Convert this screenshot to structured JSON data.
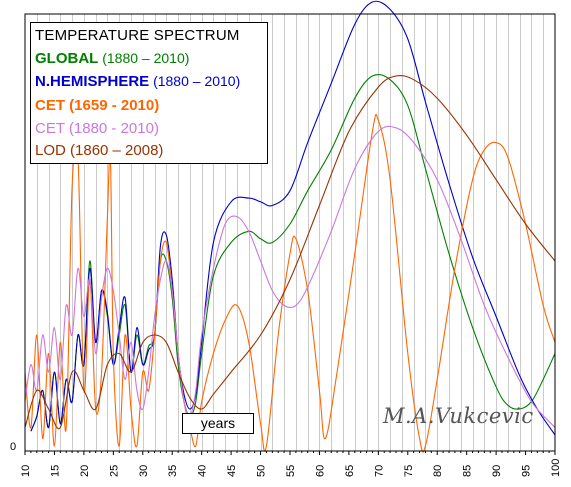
{
  "chart_data": {
    "type": "line",
    "title": "TEMPERATURE  SPECTRUM",
    "xlabel": "years",
    "ylabel": "",
    "xlim": [
      10,
      100
    ],
    "x_ticks": [
      10,
      15,
      20,
      25,
      30,
      35,
      40,
      45,
      50,
      55,
      60,
      65,
      70,
      75,
      80,
      85,
      90,
      95,
      100
    ],
    "y_ticks": [
      "0"
    ],
    "grid": "vertical",
    "legend_position": "top-left",
    "watermark": "M.A.Vukcevic",
    "series": [
      {
        "label_bold": "GLOBAL",
        "label_rest": " (1880 – 2010)",
        "color": "#008000",
        "points": [
          [
            11,
            0.04
          ],
          [
            12,
            0.08
          ],
          [
            13,
            0.15
          ],
          [
            14,
            0.05
          ],
          [
            15,
            0.2
          ],
          [
            16,
            0.06
          ],
          [
            17,
            0.18
          ],
          [
            18,
            0.12
          ],
          [
            19,
            0.3
          ],
          [
            20,
            0.22
          ],
          [
            21,
            0.5
          ],
          [
            22,
            0.28
          ],
          [
            23,
            0.42
          ],
          [
            24,
            0.35
          ],
          [
            25,
            0.22
          ],
          [
            26,
            0.3
          ],
          [
            27,
            0.38
          ],
          [
            28,
            0.2
          ],
          [
            29,
            0.3
          ],
          [
            30,
            0.22
          ],
          [
            31,
            0.27
          ],
          [
            32,
            0.3
          ],
          [
            33,
            0.5
          ],
          [
            34,
            0.5
          ],
          [
            35,
            0.4
          ],
          [
            36,
            0.22
          ],
          [
            37,
            0.12
          ],
          [
            38,
            0.08
          ],
          [
            39,
            0.12
          ],
          [
            40,
            0.25
          ],
          [
            42,
            0.46
          ],
          [
            45,
            0.55
          ],
          [
            48,
            0.58
          ],
          [
            50,
            0.56
          ],
          [
            52,
            0.55
          ],
          [
            55,
            0.6
          ],
          [
            58,
            0.69
          ],
          [
            62,
            0.8
          ],
          [
            66,
            0.94
          ],
          [
            69,
            1.0
          ],
          [
            72,
            0.99
          ],
          [
            75,
            0.92
          ],
          [
            78,
            0.75
          ],
          [
            82,
            0.52
          ],
          [
            86,
            0.32
          ],
          [
            90,
            0.16
          ],
          [
            92,
            0.11
          ],
          [
            94,
            0.1
          ],
          [
            96,
            0.12
          ],
          [
            98,
            0.18
          ],
          [
            100,
            0.25
          ]
        ]
      },
      {
        "label_bold": "N.HEMISPHERE",
        "label_rest": " (1880 – 2010)",
        "color": "#0000CC",
        "points": [
          [
            11,
            0.04
          ],
          [
            12,
            0.08
          ],
          [
            13,
            0.15
          ],
          [
            14,
            0.05
          ],
          [
            15,
            0.2
          ],
          [
            16,
            0.06
          ],
          [
            17,
            0.18
          ],
          [
            18,
            0.12
          ],
          [
            19,
            0.3
          ],
          [
            20,
            0.22
          ],
          [
            21,
            0.48
          ],
          [
            22,
            0.28
          ],
          [
            23,
            0.42
          ],
          [
            24,
            0.36
          ],
          [
            25,
            0.22
          ],
          [
            26,
            0.32
          ],
          [
            27,
            0.4
          ],
          [
            28,
            0.2
          ],
          [
            29,
            0.32
          ],
          [
            30,
            0.22
          ],
          [
            31,
            0.26
          ],
          [
            32,
            0.3
          ],
          [
            33,
            0.54
          ],
          [
            34,
            0.57
          ],
          [
            35,
            0.45
          ],
          [
            36,
            0.25
          ],
          [
            37,
            0.14
          ],
          [
            38,
            0.1
          ],
          [
            39,
            0.14
          ],
          [
            40,
            0.28
          ],
          [
            42,
            0.55
          ],
          [
            45,
            0.66
          ],
          [
            48,
            0.67
          ],
          [
            50,
            0.66
          ],
          [
            52,
            0.65
          ],
          [
            55,
            0.69
          ],
          [
            58,
            0.82
          ],
          [
            62,
            0.98
          ],
          [
            66,
            1.14
          ],
          [
            69,
            1.2
          ],
          [
            72,
            1.18
          ],
          [
            75,
            1.1
          ],
          [
            78,
            0.93
          ],
          [
            82,
            0.71
          ],
          [
            86,
            0.51
          ],
          [
            90,
            0.35
          ],
          [
            94,
            0.19
          ],
          [
            97,
            0.1
          ],
          [
            100,
            0.03
          ]
        ]
      },
      {
        "label_bold": "CET (1659 - 2010)",
        "label_rest": "",
        "color": "#FF6600",
        "points": [
          [
            10,
            0.2
          ],
          [
            11,
            0.05
          ],
          [
            12,
            0.3
          ],
          [
            13,
            0.02
          ],
          [
            14,
            0.25
          ],
          [
            15,
            0.0
          ],
          [
            16,
            0.28
          ],
          [
            17,
            0.05
          ],
          [
            18,
            0.7
          ],
          [
            19,
            0.78
          ],
          [
            20,
            0.15
          ],
          [
            21,
            0.45
          ],
          [
            22,
            0.1
          ],
          [
            23,
            0.2
          ],
          [
            24,
            0.62
          ],
          [
            24.5,
            0.78
          ],
          [
            25,
            0.25
          ],
          [
            26,
            0.0
          ],
          [
            27,
            0.3
          ],
          [
            28,
            0.1
          ],
          [
            29,
            0.0
          ],
          [
            30,
            0.2
          ],
          [
            31,
            0.15
          ],
          [
            32,
            0.3
          ],
          [
            33,
            0.5
          ],
          [
            34,
            0.55
          ],
          [
            35,
            0.42
          ],
          [
            36,
            0.25
          ],
          [
            37,
            0.12
          ],
          [
            38,
            0.05
          ],
          [
            39,
            0.0
          ],
          [
            40,
            0.12
          ],
          [
            42,
            0.25
          ],
          [
            44,
            0.34
          ],
          [
            46,
            0.38
          ],
          [
            48,
            0.28
          ],
          [
            50,
            0.06
          ],
          [
            51,
            0.0
          ],
          [
            53,
            0.3
          ],
          [
            55,
            0.52
          ],
          [
            56,
            0.56
          ],
          [
            58,
            0.42
          ],
          [
            60,
            0.15
          ],
          [
            61,
            0.02
          ],
          [
            63,
            0.2
          ],
          [
            66,
            0.52
          ],
          [
            69,
            0.85
          ],
          [
            70,
            0.88
          ],
          [
            72,
            0.72
          ],
          [
            75,
            0.25
          ],
          [
            77,
            0.02
          ],
          [
            78,
            0.0
          ],
          [
            80,
            0.18
          ],
          [
            83,
            0.48
          ],
          [
            86,
            0.72
          ],
          [
            88,
            0.8
          ],
          [
            90,
            0.82
          ],
          [
            92,
            0.78
          ],
          [
            95,
            0.6
          ],
          [
            98,
            0.38
          ],
          [
            100,
            0.28
          ]
        ]
      },
      {
        "label_bold": "",
        "label_rest": "CET (1880 - 2010)",
        "color": "#CC77DD",
        "points": [
          [
            10,
            0.12
          ],
          [
            11,
            0.22
          ],
          [
            12,
            0.15
          ],
          [
            13,
            0.3
          ],
          [
            14,
            0.2
          ],
          [
            15,
            0.32
          ],
          [
            16,
            0.18
          ],
          [
            17,
            0.38
          ],
          [
            18,
            0.3
          ],
          [
            19,
            0.48
          ],
          [
            20,
            0.35
          ],
          [
            21,
            0.45
          ],
          [
            22,
            0.25
          ],
          [
            23,
            0.4
          ],
          [
            24,
            0.48
          ],
          [
            25,
            0.42
          ],
          [
            26,
            0.3
          ],
          [
            27,
            0.18
          ],
          [
            28,
            0.28
          ],
          [
            29,
            0.15
          ],
          [
            30,
            0.1
          ],
          [
            31,
            0.2
          ],
          [
            32,
            0.35
          ],
          [
            33,
            0.45
          ],
          [
            34,
            0.5
          ],
          [
            35,
            0.42
          ],
          [
            36,
            0.25
          ],
          [
            37,
            0.12
          ],
          [
            38,
            0.08
          ],
          [
            39,
            0.15
          ],
          [
            40,
            0.3
          ],
          [
            42,
            0.48
          ],
          [
            44,
            0.6
          ],
          [
            46,
            0.62
          ],
          [
            48,
            0.58
          ],
          [
            50,
            0.5
          ],
          [
            52,
            0.42
          ],
          [
            54,
            0.38
          ],
          [
            56,
            0.38
          ],
          [
            58,
            0.43
          ],
          [
            62,
            0.58
          ],
          [
            66,
            0.75
          ],
          [
            70,
            0.85
          ],
          [
            73,
            0.86
          ],
          [
            76,
            0.82
          ],
          [
            80,
            0.72
          ],
          [
            84,
            0.56
          ],
          [
            88,
            0.38
          ],
          [
            92,
            0.24
          ],
          [
            96,
            0.12
          ],
          [
            100,
            0.05
          ]
        ]
      },
      {
        "label_bold": "",
        "label_rest": "LOD (1860 – 2008)",
        "color": "#993300",
        "points": [
          [
            10,
            0.05
          ],
          [
            12,
            0.15
          ],
          [
            14,
            0.1
          ],
          [
            16,
            0.05
          ],
          [
            18,
            0.2
          ],
          [
            20,
            0.15
          ],
          [
            22,
            0.1
          ],
          [
            24,
            0.22
          ],
          [
            26,
            0.25
          ],
          [
            28,
            0.2
          ],
          [
            30,
            0.28
          ],
          [
            32,
            0.3
          ],
          [
            34,
            0.28
          ],
          [
            36,
            0.2
          ],
          [
            38,
            0.13
          ],
          [
            40,
            0.1
          ],
          [
            42,
            0.14
          ],
          [
            45,
            0.2
          ],
          [
            50,
            0.3
          ],
          [
            55,
            0.45
          ],
          [
            60,
            0.65
          ],
          [
            65,
            0.85
          ],
          [
            70,
            0.97
          ],
          [
            73,
            1.0
          ],
          [
            76,
            0.99
          ],
          [
            80,
            0.94
          ],
          [
            85,
            0.84
          ],
          [
            90,
            0.72
          ],
          [
            95,
            0.6
          ],
          [
            100,
            0.5
          ]
        ]
      }
    ]
  }
}
